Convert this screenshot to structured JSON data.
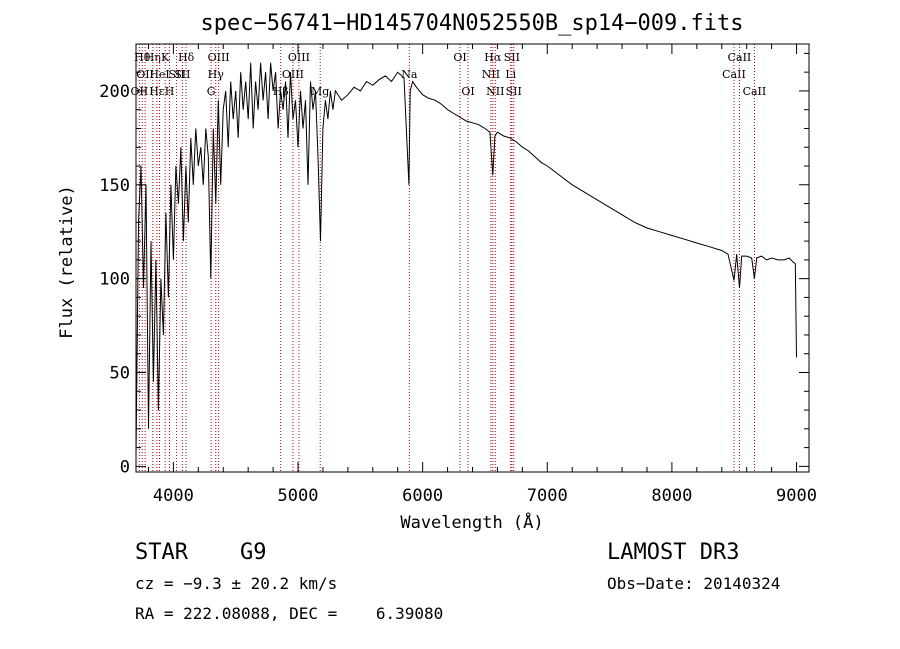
{
  "chart_data": {
    "type": "line",
    "title": "spec−56741−HD145704N052550B_sp14−009.fits",
    "xlabel": "Wavelength (Å)",
    "ylabel": "Flux (relative)",
    "xlim": [
      3700,
      9100
    ],
    "ylim": [
      -3,
      225
    ],
    "x_ticks": [
      4000,
      5000,
      6000,
      7000,
      8000,
      9000
    ],
    "y_ticks": [
      0,
      50,
      100,
      150,
      200
    ],
    "grid": false,
    "series": [
      {
        "name": "spectrum",
        "x": [
          3700,
          3720,
          3740,
          3760,
          3780,
          3800,
          3820,
          3840,
          3860,
          3880,
          3900,
          3920,
          3940,
          3960,
          3980,
          4000,
          4020,
          4040,
          4060,
          4080,
          4100,
          4120,
          4140,
          4160,
          4180,
          4200,
          4220,
          4240,
          4260,
          4280,
          4300,
          4320,
          4340,
          4360,
          4380,
          4400,
          4420,
          4440,
          4460,
          4480,
          4500,
          4520,
          4540,
          4560,
          4580,
          4600,
          4620,
          4640,
          4660,
          4680,
          4700,
          4720,
          4740,
          4760,
          4780,
          4800,
          4820,
          4840,
          4860,
          4880,
          4900,
          4920,
          4940,
          4960,
          4980,
          5000,
          5020,
          5040,
          5060,
          5080,
          5100,
          5120,
          5140,
          5160,
          5180,
          5200,
          5220,
          5240,
          5260,
          5280,
          5300,
          5350,
          5400,
          5450,
          5500,
          5550,
          5600,
          5650,
          5700,
          5750,
          5800,
          5850,
          5890,
          5900,
          5920,
          5950,
          6000,
          6050,
          6100,
          6150,
          6200,
          6250,
          6300,
          6350,
          6400,
          6450,
          6500,
          6540,
          6563,
          6580,
          6600,
          6650,
          6700,
          6750,
          6800,
          6850,
          6900,
          6950,
          7000,
          7100,
          7200,
          7300,
          7400,
          7500,
          7600,
          7700,
          7800,
          7900,
          8000,
          8100,
          8200,
          8300,
          8400,
          8450,
          8498,
          8520,
          8542,
          8560,
          8600,
          8640,
          8662,
          8680,
          8720,
          8760,
          8800,
          8850,
          8900,
          8940,
          8970,
          8990,
          9000
        ],
        "values": [
          5,
          130,
          160,
          95,
          150,
          20,
          120,
          45,
          110,
          30,
          100,
          70,
          135,
          90,
          150,
          110,
          160,
          140,
          170,
          120,
          160,
          130,
          175,
          150,
          180,
          160,
          170,
          150,
          180,
          165,
          100,
          180,
          140,
          195,
          150,
          190,
          200,
          170,
          205,
          185,
          200,
          175,
          210,
          190,
          205,
          185,
          215,
          180,
          205,
          190,
          215,
          195,
          210,
          185,
          215,
          200,
          210,
          180,
          200,
          190,
          205,
          175,
          210,
          185,
          195,
          170,
          200,
          180,
          195,
          150,
          205,
          190,
          200,
          165,
          120,
          180,
          195,
          185,
          200,
          190,
          200,
          195,
          198,
          202,
          200,
          205,
          203,
          206,
          208,
          205,
          210,
          207,
          150,
          200,
          205,
          202,
          198,
          196,
          195,
          193,
          190,
          188,
          186,
          184,
          183,
          182,
          180,
          178,
          155,
          176,
          178,
          176,
          175,
          173,
          170,
          168,
          165,
          162,
          160,
          155,
          150,
          146,
          142,
          138,
          134,
          130,
          127,
          125,
          123,
          121,
          119,
          117,
          115,
          113,
          99,
          113,
          95,
          112,
          112,
          111,
          100,
          111,
          112,
          110,
          111,
          110,
          110,
          111,
          109,
          108,
          58
        ]
      }
    ],
    "line_markers": [
      {
        "x": 3727,
        "label": "OII",
        "row": 3
      },
      {
        "x": 3750,
        "label": "Hθ",
        "row": 1
      },
      {
        "x": 3773,
        "label": "OII",
        "row": 2
      },
      {
        "x": 3835,
        "label": "Hη",
        "row": 1
      },
      {
        "x": 3868,
        "label": "Hε",
        "row": 3
      },
      {
        "x": 3889,
        "label": "HeI",
        "row": 2
      },
      {
        "x": 3934,
        "label": "K",
        "row": 1
      },
      {
        "x": 3969,
        "label": "H",
        "row": 3
      },
      {
        "x": 4026,
        "label": "SII",
        "row": 2
      },
      {
        "x": 4072,
        "label": "SII",
        "row": 2
      },
      {
        "x": 4102,
        "label": "Hδ",
        "row": 1
      },
      {
        "x": 4303,
        "label": "G",
        "row": 3
      },
      {
        "x": 4340,
        "label": "Hγ",
        "row": 2
      },
      {
        "x": 4363,
        "label": "OIII",
        "row": 1
      },
      {
        "x": 4861,
        "label": "Hβ",
        "row": 3
      },
      {
        "x": 4959,
        "label": "OIII",
        "row": 2
      },
      {
        "x": 5007,
        "label": "OIII",
        "row": 1
      },
      {
        "x": 5178,
        "label": "Mg",
        "row": 3
      },
      {
        "x": 5893,
        "label": "Na",
        "row": 2
      },
      {
        "x": 6300,
        "label": "OI",
        "row": 1
      },
      {
        "x": 6364,
        "label": "OI",
        "row": 3
      },
      {
        "x": 6548,
        "label": "NII",
        "row": 2
      },
      {
        "x": 6563,
        "label": "Hα",
        "row": 1
      },
      {
        "x": 6583,
        "label": "NII",
        "row": 3
      },
      {
        "x": 6707,
        "label": "Li",
        "row": 2
      },
      {
        "x": 6716,
        "label": "SII",
        "row": 1
      },
      {
        "x": 6731,
        "label": "SII",
        "row": 3
      },
      {
        "x": 8498,
        "label": "CaII",
        "row": 2
      },
      {
        "x": 8542,
        "label": "CaII",
        "row": 1
      },
      {
        "x": 8662,
        "label": "CaII",
        "row": 3
      }
    ]
  },
  "info": {
    "object_type": "STAR",
    "subclass": "G9",
    "redshift": "cz = −9.3 ± 20.2 km/s",
    "coordinates": "RA = 222.08088, DEC =    6.39080",
    "survey": "LAMOST DR3",
    "obs_date": "Obs−Date: 20140324"
  },
  "colors": {
    "spectrum": "#000000",
    "marker_line": "#b40000",
    "axis": "#000000"
  }
}
